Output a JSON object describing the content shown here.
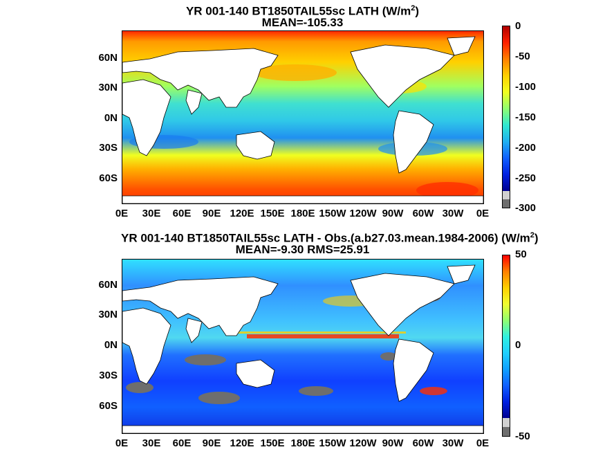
{
  "panels": [
    {
      "title_line1": "YR 001-140 BT1850TAIL55sc  LATH (W/m",
      "title_sup": "2",
      "title_close": ")",
      "title_line2": "MEAN=-105.33",
      "colorbar_ticks": [
        "0",
        "-50",
        "-100",
        "-150",
        "-200",
        "-250",
        "-300"
      ],
      "colorbar_range": [
        -300,
        0
      ]
    },
    {
      "title_line1": "YR 001-140 BT1850TAIL55sc LATH - Obs.(a.b27.03.mean.1984-2006) (W/m",
      "title_sup": "2",
      "title_close": ")",
      "title_line2": "MEAN=-9.30 RMS=25.91",
      "colorbar_ticks": [
        "50",
        "0",
        "-50"
      ],
      "colorbar_range": [
        -50,
        50
      ]
    }
  ],
  "lat_labels": [
    "60N",
    "30N",
    "0N",
    "30S",
    "60S"
  ],
  "lon_labels": [
    "0E",
    "30E",
    "60E",
    "90E",
    "120E",
    "150E",
    "180E",
    "150W",
    "120W",
    "90W",
    "60W",
    "30W",
    "0E"
  ],
  "colors": {
    "land": "#ffffff",
    "missing": "#6e6e6e",
    "colormap": [
      "#7f0000",
      "#ff0000",
      "#ff8000",
      "#ffff00",
      "#80ff80",
      "#00ffff",
      "#0080ff",
      "#0000ff",
      "#00008f"
    ]
  }
}
